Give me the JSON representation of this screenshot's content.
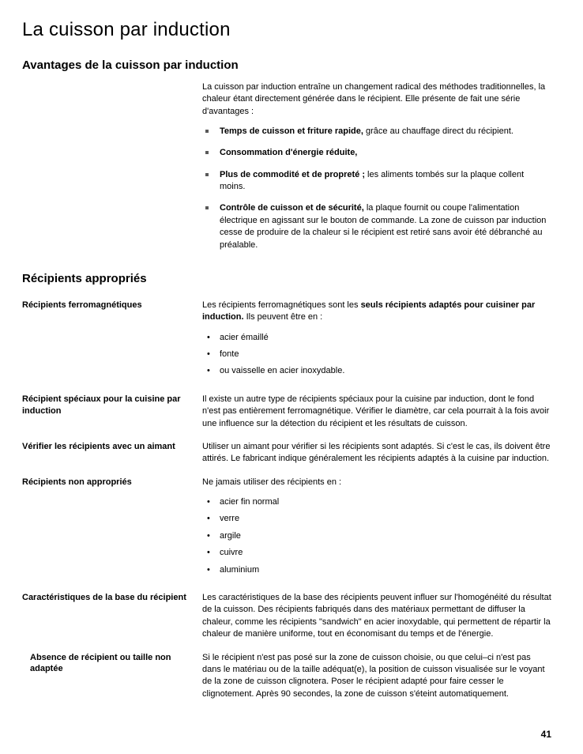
{
  "title": "La cuisson par induction",
  "section1": {
    "heading": "Avantages de la cuisson par induction",
    "intro": "La cuisson par induction entraîne un changement radical des méthodes traditionnelles, la chaleur étant directement générée dans le récipient. Elle présente de fait une série d'avantages :",
    "items": [
      {
        "bold": "Temps de cuisson et friture rapide,",
        "rest": " grâce au chauffage direct du récipient."
      },
      {
        "bold": "Consommation d'énergie réduite,",
        "rest": ""
      },
      {
        "bold": "Plus de commodité et de propreté ;",
        "rest": " les aliments tombés sur la plaque collent moins."
      },
      {
        "bold": "Contrôle de cuisson et de sécurité,",
        "rest": " la plaque fournit ou coupe l'alimentation électrique en agissant sur le bouton de commande. La zone de cuisson par induction cesse de produire de la chaleur si le récipient est retiré sans avoir été débranché au préalable."
      }
    ]
  },
  "section2": {
    "heading": "Récipients appropriés",
    "sub1": {
      "label": "Récipients ferromagnétiques",
      "text_a": "Les récipients ferromagnétiques sont les ",
      "text_b": "seuls récipients adaptés pour cuisiner par induction.",
      "text_c": " Ils peuvent être en :",
      "list": [
        "acier émaillé",
        "fonte",
        "ou vaisselle en acier inoxydable."
      ]
    },
    "sub2": {
      "label": "Récipient spéciaux pour la cuisine par induction",
      "text": "Il existe un autre type de récipients spéciaux pour la cuisine par induction, dont le fond n'est pas entièrement ferromagnétique. Vérifier le diamètre, car cela pourrait à la fois avoir une influence sur la détection du récipient et les résultats de cuisson."
    },
    "sub3": {
      "label": "Vérifier les récipients avec un aimant",
      "text": "Utiliser un aimant pour vérifier si les récipients sont adaptés. Si c'est le cas, ils doivent être attirés. Le fabricant indique généralement les récipients adaptés à la cuisine par induction."
    },
    "sub4": {
      "label": "Récipients non appropriés",
      "text": "Ne jamais utiliser des récipients en :",
      "list": [
        "acier fin normal",
        "verre",
        "argile",
        "cuivre",
        "aluminium"
      ]
    },
    "sub5": {
      "label": "Caractéristiques de la base du récipient",
      "text": "Les caractéristiques de la base des récipients peuvent influer sur l'homogénéité du résultat de la cuisson. Des récipients fabriqués dans des matériaux permettant de diffuser la chaleur, comme les récipients \"sandwich\" en acier inoxydable, qui permettent de répartir la chaleur de manière uniforme, tout en économisant du temps et de l'énergie."
    },
    "sub6": {
      "label": "Absence de récipient ou taille non adaptée",
      "text": "Si le récipient n'est pas posé sur la zone de cuisson choisie, ou que celui–ci n'est pas dans le matériau ou de la taille adéquat(e), la position de cuisson visualisée sur le voyant de la zone de cuisson clignotera. Poser le récipient adapté pour faire cesser le clignotement. Après 90 secondes, la zone de cuisson s'éteint automatiquement."
    }
  },
  "pageNumber": "41"
}
